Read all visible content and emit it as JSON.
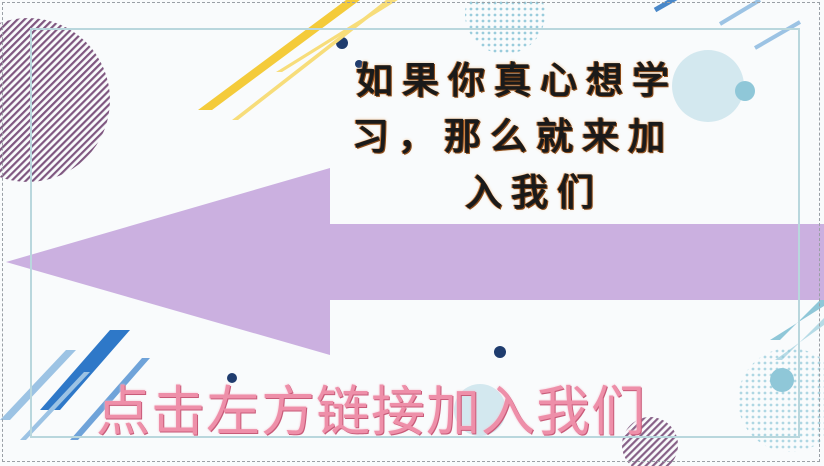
{
  "headline": {
    "line1": "如果你真心想学",
    "line2": "习，那么就来加",
    "line3": "入我们"
  },
  "cta_text": "点击左方链接加入我们",
  "colors": {
    "background": "#f9fbfc",
    "arrow": "#cbb0e0",
    "headline_text": "#1a1a1a",
    "headline_outline": "#8a4a18",
    "cta_text": "#ee8fa9",
    "frame": "#b9d7dd",
    "accent_yellow": "#f4cb3a",
    "accent_blue": "#2e78c8",
    "accent_teal": "#8fc7d8",
    "accent_navy": "#1f3c6e",
    "stripe_purple": "#6a3a6a"
  },
  "icons": {
    "arrow": "left-arrow-icon"
  }
}
